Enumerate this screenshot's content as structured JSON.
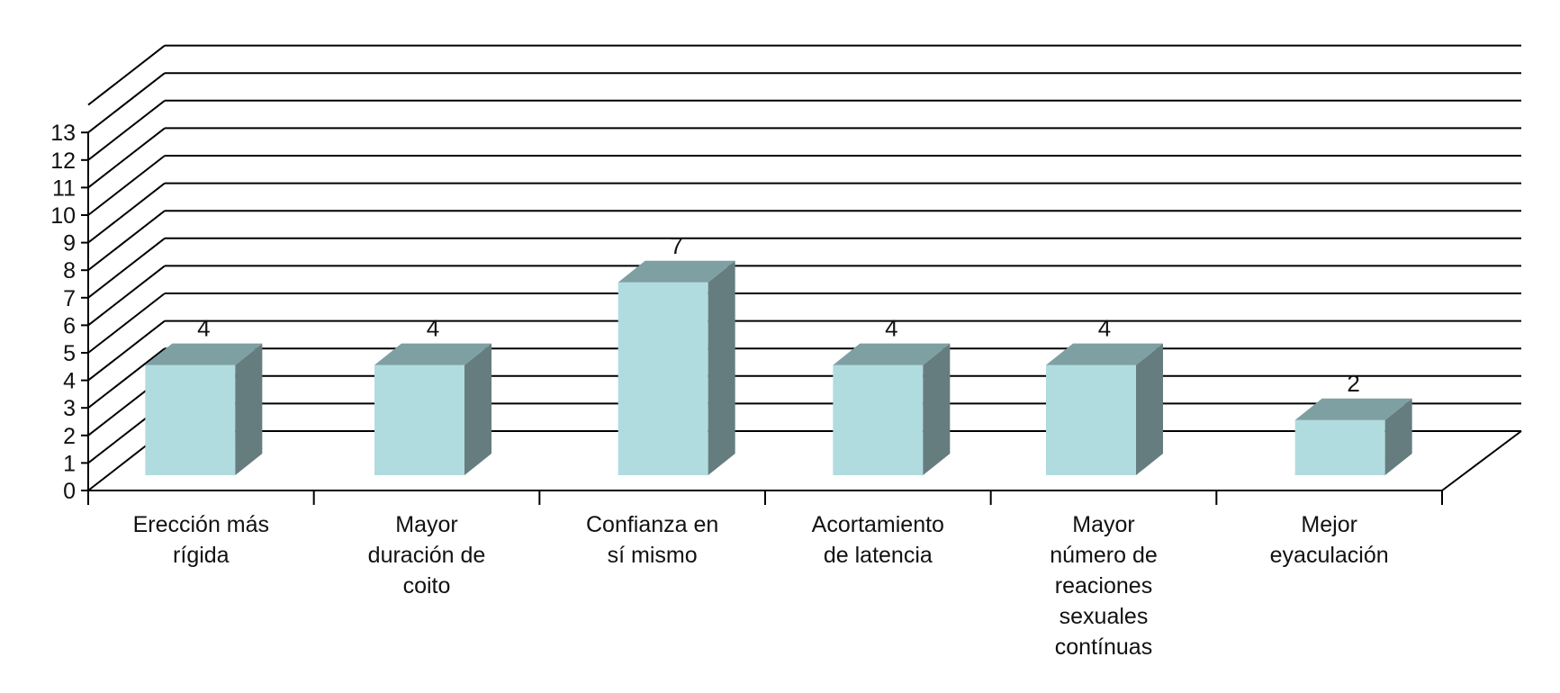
{
  "chart_data": {
    "type": "bar",
    "style": "3d-column",
    "categories": [
      [
        "Erección más",
        "rígida"
      ],
      [
        "Mayor",
        "duración de",
        "coito"
      ],
      [
        "Confianza en",
        "sí mismo"
      ],
      [
        "Acortamiento",
        "de latencia"
      ],
      [
        "Mayor",
        "número de",
        "reaciones",
        "sexuales",
        "contínuas"
      ],
      [
        "Mejor",
        "eyaculación"
      ]
    ],
    "values": [
      4,
      4,
      7,
      4,
      4,
      2
    ],
    "data_labels": [
      "4",
      "4",
      "7",
      "4",
      "4",
      "2"
    ],
    "ylim": [
      0,
      13
    ],
    "yticks": [
      0,
      1,
      2,
      3,
      4,
      5,
      6,
      7,
      8,
      9,
      10,
      11,
      12,
      13
    ],
    "grid": true,
    "legend": "none",
    "title": "",
    "xlabel": "",
    "ylabel": "",
    "colors": {
      "bar_front": "#b0dcdf",
      "bar_top": "#7fa0a3",
      "bar_side": "#667d7f",
      "grid": "#000000",
      "text": "#111111"
    }
  }
}
